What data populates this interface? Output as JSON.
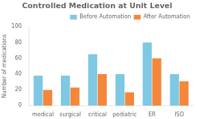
{
  "chart_data": {
    "type": "bar",
    "title": "Controlled Medication at Unit Level",
    "categories": [
      "medical",
      "surgical",
      "critical",
      "pediatric",
      "ER",
      "ISO"
    ],
    "series": [
      {
        "name": "Before Automation",
        "color": "#7ec8e3",
        "values": [
          38,
          38,
          65,
          40,
          80,
          40
        ]
      },
      {
        "name": "After Automation",
        "color": "#f4873b",
        "values": [
          20,
          23,
          40,
          17,
          60,
          31
        ]
      }
    ],
    "ylabel": "Number of medications",
    "ylim": [
      0,
      100
    ],
    "yticks": [
      0,
      20,
      40,
      60,
      80,
      100
    ],
    "grid": false,
    "legend": "upper right"
  }
}
